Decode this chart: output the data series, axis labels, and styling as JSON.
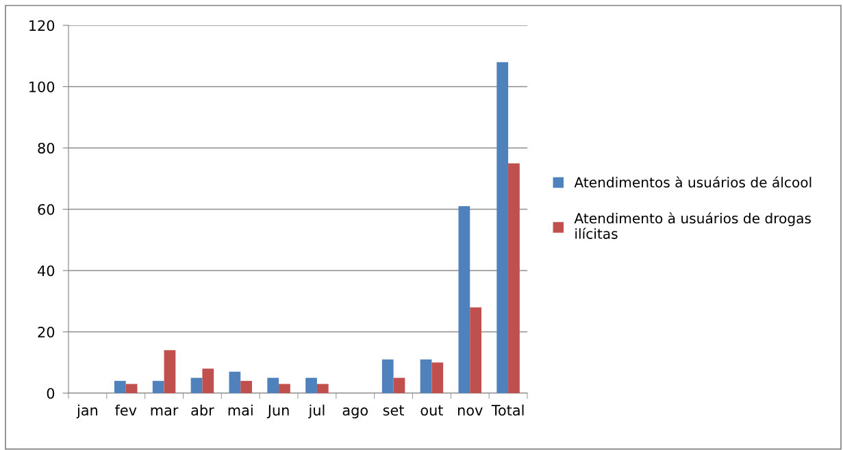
{
  "chart_data": {
    "type": "bar",
    "categories": [
      "jan",
      "fev",
      "mar",
      "abr",
      "mai",
      "Jun",
      "jul",
      "ago",
      "set",
      "out",
      "nov",
      "Total"
    ],
    "series": [
      {
        "name": "Atendimentos à usuários de álcool",
        "color": "#4f81bd",
        "values": [
          0,
          4,
          4,
          5,
          7,
          5,
          5,
          0,
          11,
          11,
          61,
          108
        ]
      },
      {
        "name": "Atendimento à usuários de drogas ilícitas",
        "color": "#c0504d",
        "values": [
          0,
          3,
          14,
          8,
          4,
          3,
          3,
          0,
          5,
          10,
          28,
          75
        ]
      }
    ],
    "ylim": [
      0,
      120
    ],
    "yticks": [
      0,
      20,
      40,
      60,
      80,
      100,
      120
    ],
    "grid": "y",
    "legend": "right"
  }
}
